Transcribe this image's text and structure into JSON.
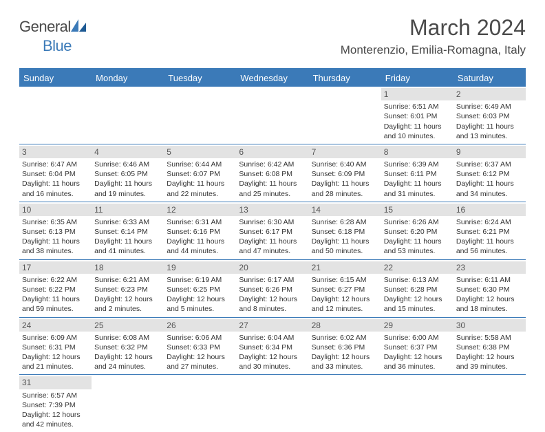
{
  "logo": {
    "text1": "General",
    "text2": "Blue"
  },
  "title": "March 2024",
  "location": "Monterenzio, Emilia-Romagna, Italy",
  "colors": {
    "header_blue": "#3b7ab8",
    "day_num_bg": "#e3e3e3",
    "text": "#333333",
    "title_text": "#4a4a4a"
  },
  "day_headers": [
    "Sunday",
    "Monday",
    "Tuesday",
    "Wednesday",
    "Thursday",
    "Friday",
    "Saturday"
  ],
  "weeks": [
    [
      null,
      null,
      null,
      null,
      null,
      {
        "n": "1",
        "sr": "Sunrise: 6:51 AM",
        "ss": "Sunset: 6:01 PM",
        "d1": "Daylight: 11 hours",
        "d2": "and 10 minutes."
      },
      {
        "n": "2",
        "sr": "Sunrise: 6:49 AM",
        "ss": "Sunset: 6:03 PM",
        "d1": "Daylight: 11 hours",
        "d2": "and 13 minutes."
      }
    ],
    [
      {
        "n": "3",
        "sr": "Sunrise: 6:47 AM",
        "ss": "Sunset: 6:04 PM",
        "d1": "Daylight: 11 hours",
        "d2": "and 16 minutes."
      },
      {
        "n": "4",
        "sr": "Sunrise: 6:46 AM",
        "ss": "Sunset: 6:05 PM",
        "d1": "Daylight: 11 hours",
        "d2": "and 19 minutes."
      },
      {
        "n": "5",
        "sr": "Sunrise: 6:44 AM",
        "ss": "Sunset: 6:07 PM",
        "d1": "Daylight: 11 hours",
        "d2": "and 22 minutes."
      },
      {
        "n": "6",
        "sr": "Sunrise: 6:42 AM",
        "ss": "Sunset: 6:08 PM",
        "d1": "Daylight: 11 hours",
        "d2": "and 25 minutes."
      },
      {
        "n": "7",
        "sr": "Sunrise: 6:40 AM",
        "ss": "Sunset: 6:09 PM",
        "d1": "Daylight: 11 hours",
        "d2": "and 28 minutes."
      },
      {
        "n": "8",
        "sr": "Sunrise: 6:39 AM",
        "ss": "Sunset: 6:11 PM",
        "d1": "Daylight: 11 hours",
        "d2": "and 31 minutes."
      },
      {
        "n": "9",
        "sr": "Sunrise: 6:37 AM",
        "ss": "Sunset: 6:12 PM",
        "d1": "Daylight: 11 hours",
        "d2": "and 34 minutes."
      }
    ],
    [
      {
        "n": "10",
        "sr": "Sunrise: 6:35 AM",
        "ss": "Sunset: 6:13 PM",
        "d1": "Daylight: 11 hours",
        "d2": "and 38 minutes."
      },
      {
        "n": "11",
        "sr": "Sunrise: 6:33 AM",
        "ss": "Sunset: 6:14 PM",
        "d1": "Daylight: 11 hours",
        "d2": "and 41 minutes."
      },
      {
        "n": "12",
        "sr": "Sunrise: 6:31 AM",
        "ss": "Sunset: 6:16 PM",
        "d1": "Daylight: 11 hours",
        "d2": "and 44 minutes."
      },
      {
        "n": "13",
        "sr": "Sunrise: 6:30 AM",
        "ss": "Sunset: 6:17 PM",
        "d1": "Daylight: 11 hours",
        "d2": "and 47 minutes."
      },
      {
        "n": "14",
        "sr": "Sunrise: 6:28 AM",
        "ss": "Sunset: 6:18 PM",
        "d1": "Daylight: 11 hours",
        "d2": "and 50 minutes."
      },
      {
        "n": "15",
        "sr": "Sunrise: 6:26 AM",
        "ss": "Sunset: 6:20 PM",
        "d1": "Daylight: 11 hours",
        "d2": "and 53 minutes."
      },
      {
        "n": "16",
        "sr": "Sunrise: 6:24 AM",
        "ss": "Sunset: 6:21 PM",
        "d1": "Daylight: 11 hours",
        "d2": "and 56 minutes."
      }
    ],
    [
      {
        "n": "17",
        "sr": "Sunrise: 6:22 AM",
        "ss": "Sunset: 6:22 PM",
        "d1": "Daylight: 11 hours",
        "d2": "and 59 minutes."
      },
      {
        "n": "18",
        "sr": "Sunrise: 6:21 AM",
        "ss": "Sunset: 6:23 PM",
        "d1": "Daylight: 12 hours",
        "d2": "and 2 minutes."
      },
      {
        "n": "19",
        "sr": "Sunrise: 6:19 AM",
        "ss": "Sunset: 6:25 PM",
        "d1": "Daylight: 12 hours",
        "d2": "and 5 minutes."
      },
      {
        "n": "20",
        "sr": "Sunrise: 6:17 AM",
        "ss": "Sunset: 6:26 PM",
        "d1": "Daylight: 12 hours",
        "d2": "and 8 minutes."
      },
      {
        "n": "21",
        "sr": "Sunrise: 6:15 AM",
        "ss": "Sunset: 6:27 PM",
        "d1": "Daylight: 12 hours",
        "d2": "and 12 minutes."
      },
      {
        "n": "22",
        "sr": "Sunrise: 6:13 AM",
        "ss": "Sunset: 6:28 PM",
        "d1": "Daylight: 12 hours",
        "d2": "and 15 minutes."
      },
      {
        "n": "23",
        "sr": "Sunrise: 6:11 AM",
        "ss": "Sunset: 6:30 PM",
        "d1": "Daylight: 12 hours",
        "d2": "and 18 minutes."
      }
    ],
    [
      {
        "n": "24",
        "sr": "Sunrise: 6:09 AM",
        "ss": "Sunset: 6:31 PM",
        "d1": "Daylight: 12 hours",
        "d2": "and 21 minutes."
      },
      {
        "n": "25",
        "sr": "Sunrise: 6:08 AM",
        "ss": "Sunset: 6:32 PM",
        "d1": "Daylight: 12 hours",
        "d2": "and 24 minutes."
      },
      {
        "n": "26",
        "sr": "Sunrise: 6:06 AM",
        "ss": "Sunset: 6:33 PM",
        "d1": "Daylight: 12 hours",
        "d2": "and 27 minutes."
      },
      {
        "n": "27",
        "sr": "Sunrise: 6:04 AM",
        "ss": "Sunset: 6:34 PM",
        "d1": "Daylight: 12 hours",
        "d2": "and 30 minutes."
      },
      {
        "n": "28",
        "sr": "Sunrise: 6:02 AM",
        "ss": "Sunset: 6:36 PM",
        "d1": "Daylight: 12 hours",
        "d2": "and 33 minutes."
      },
      {
        "n": "29",
        "sr": "Sunrise: 6:00 AM",
        "ss": "Sunset: 6:37 PM",
        "d1": "Daylight: 12 hours",
        "d2": "and 36 minutes."
      },
      {
        "n": "30",
        "sr": "Sunrise: 5:58 AM",
        "ss": "Sunset: 6:38 PM",
        "d1": "Daylight: 12 hours",
        "d2": "and 39 minutes."
      }
    ],
    [
      {
        "n": "31",
        "sr": "Sunrise: 6:57 AM",
        "ss": "Sunset: 7:39 PM",
        "d1": "Daylight: 12 hours",
        "d2": "and 42 minutes."
      },
      null,
      null,
      null,
      null,
      null,
      null
    ]
  ]
}
